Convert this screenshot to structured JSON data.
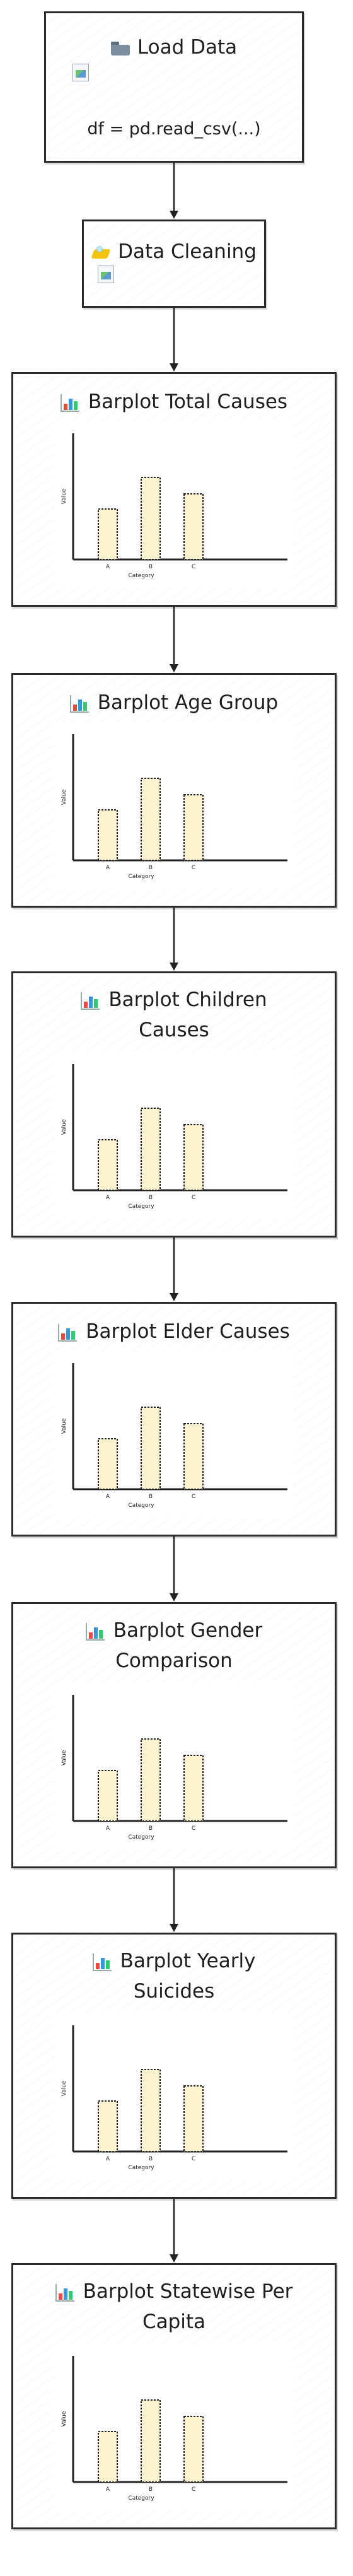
{
  "flowchart": {
    "nodes": [
      {
        "id": "load",
        "icon": "folder-icon",
        "title": "Load Data",
        "code": "df = pd.read_csv(...)"
      },
      {
        "id": "clean",
        "icon": "soap-icon",
        "title": "Data Cleaning"
      },
      {
        "id": "total",
        "icon": "bar-chart-icon",
        "title": "Barplot Total Causes"
      },
      {
        "id": "age",
        "icon": "bar-chart-icon",
        "title": "Barplot Age Group"
      },
      {
        "id": "children",
        "icon": "bar-chart-icon",
        "title": "Barplot Children",
        "title_line2": "Causes"
      },
      {
        "id": "elder",
        "icon": "bar-chart-icon",
        "title": "Barplot Elder Causes"
      },
      {
        "id": "gender",
        "icon": "bar-chart-icon",
        "title": "Barplot Gender",
        "title_line2": "Comparison"
      },
      {
        "id": "yearly",
        "icon": "bar-chart-icon",
        "title": "Barplot Yearly",
        "title_line2": "Suicides"
      },
      {
        "id": "statewise",
        "icon": "bar-chart-icon",
        "title": "Barplot Statewise Per",
        "title_line2": "Capita"
      }
    ],
    "edges": [
      {
        "from": "load",
        "to": "clean"
      },
      {
        "from": "clean",
        "to": "total"
      },
      {
        "from": "total",
        "to": "age"
      },
      {
        "from": "age",
        "to": "children"
      },
      {
        "from": "children",
        "to": "elder"
      },
      {
        "from": "elder",
        "to": "gender"
      },
      {
        "from": "gender",
        "to": "yearly"
      },
      {
        "from": "yearly",
        "to": "statewise"
      }
    ]
  },
  "chart_data": {
    "type": "bar",
    "categories": [
      "A",
      "B",
      "C"
    ],
    "values": [
      40,
      65,
      52
    ],
    "xlabel": "Category",
    "ylabel": "Value",
    "ylim": [
      0,
      100
    ],
    "bar_fill": "#fdf3d1",
    "bar_stroke": "#222222"
  },
  "colors": {
    "node_border": "#2a2a2a",
    "background": "#ffffff"
  }
}
